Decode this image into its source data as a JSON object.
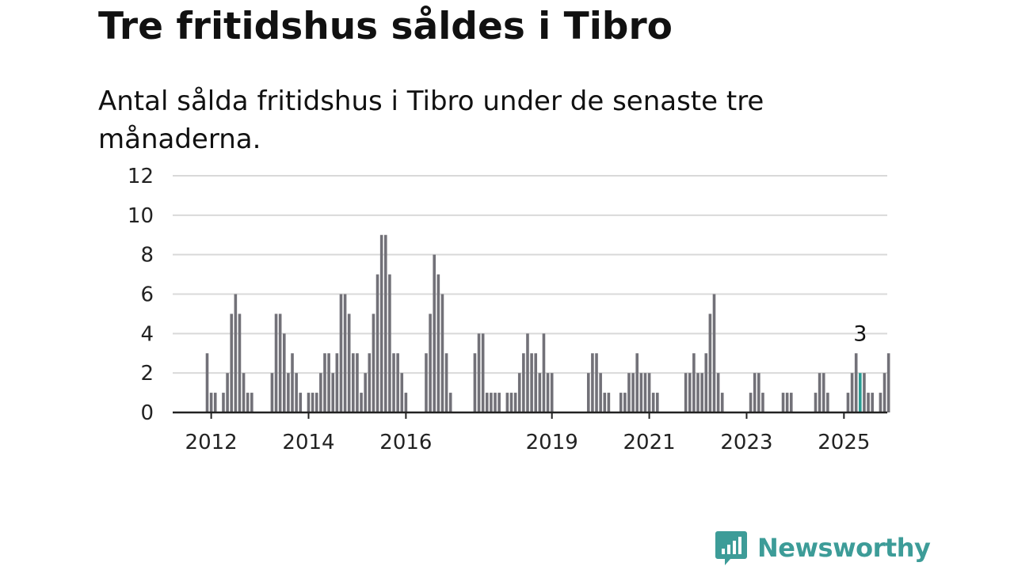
{
  "title": "Tre fritidshus såldes i Tibro",
  "subtitle": "Antal sålda fritidshus i Tibro under de senaste tre månaderna.",
  "brand": {
    "name": "Newsworthy",
    "icon": "newsworthy-logo-icon",
    "color": "#3d9c98"
  },
  "chart_data": {
    "type": "bar",
    "title": "Tre fritidshus såldes i Tibro",
    "subtitle": "Antal sålda fritidshus i Tibro under de senaste tre månaderna.",
    "xlabel": "",
    "ylabel": "",
    "x_tick_labels": [
      "2012",
      "2014",
      "2016",
      "2019",
      "2021",
      "2023",
      "2025"
    ],
    "y_ticks": [
      0,
      2,
      4,
      6,
      8,
      10,
      12
    ],
    "ylim": [
      0,
      12
    ],
    "grid": true,
    "bar_color": "#727178",
    "highlight_color": "#2a9d94",
    "start": "2011-12",
    "end": "2025-05",
    "values": [
      3,
      1,
      1,
      0,
      1,
      2,
      5,
      6,
      5,
      2,
      1,
      1,
      0,
      0,
      0,
      0,
      2,
      5,
      5,
      4,
      2,
      3,
      2,
      1,
      0,
      1,
      1,
      1,
      2,
      3,
      3,
      2,
      3,
      6,
      6,
      5,
      3,
      3,
      1,
      2,
      3,
      5,
      7,
      9,
      9,
      7,
      3,
      3,
      2,
      1,
      0,
      0,
      0,
      0,
      3,
      5,
      8,
      7,
      6,
      3,
      1,
      0,
      0,
      0,
      0,
      0,
      3,
      4,
      4,
      1,
      1,
      1,
      1,
      0,
      1,
      1,
      1,
      2,
      3,
      4,
      3,
      3,
      2,
      4,
      2,
      2,
      0,
      0,
      0,
      0,
      0,
      0,
      0,
      0,
      2,
      3,
      3,
      2,
      1,
      1,
      0,
      0,
      1,
      1,
      2,
      2,
      3,
      2,
      2,
      2,
      1,
      1,
      0,
      0,
      0,
      0,
      0,
      0,
      2,
      2,
      3,
      2,
      2,
      3,
      5,
      6,
      2,
      1,
      0,
      0,
      0,
      0,
      0,
      0,
      1,
      2,
      2,
      1,
      0,
      0,
      0,
      0,
      1,
      1,
      1,
      0,
      0,
      0,
      0,
      0,
      1,
      2,
      2,
      1,
      0,
      0,
      0,
      0,
      1,
      2,
      3,
      2,
      2,
      1,
      1,
      0,
      1,
      2,
      3
    ],
    "highlight": {
      "period": "2025-05",
      "value": 3,
      "label": "3"
    }
  }
}
